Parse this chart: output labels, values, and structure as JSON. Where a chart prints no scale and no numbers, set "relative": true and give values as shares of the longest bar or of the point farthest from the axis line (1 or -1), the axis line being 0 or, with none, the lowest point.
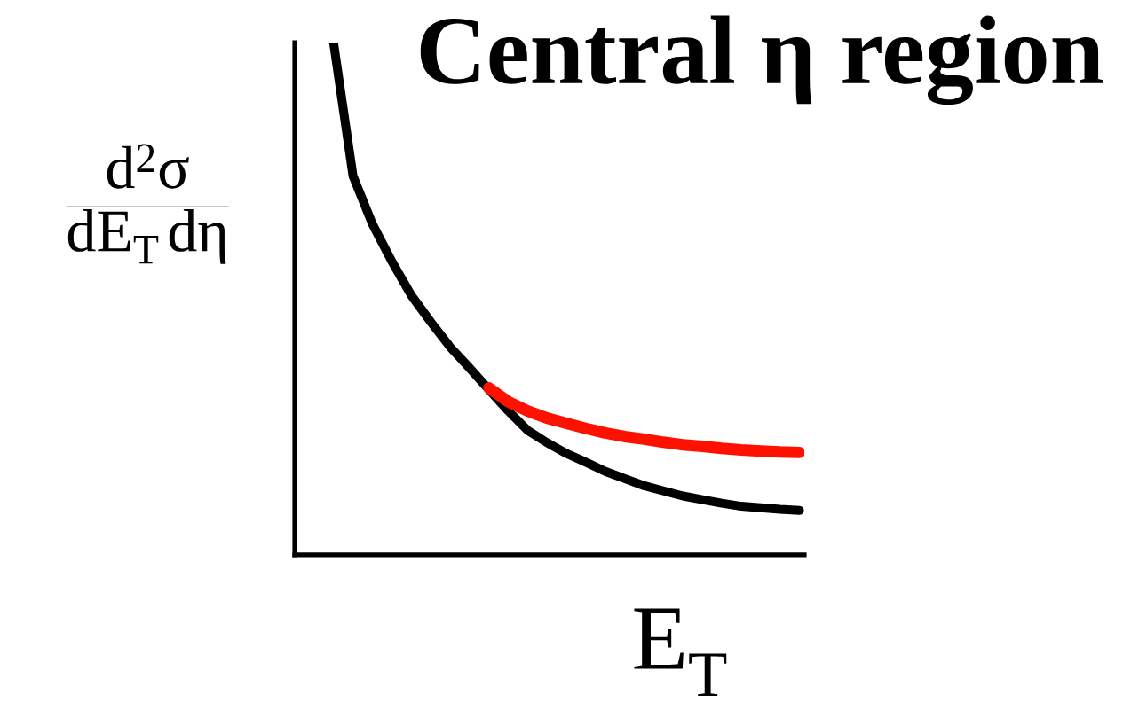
{
  "chart_data": {
    "type": "line",
    "title": "Central η region",
    "xlabel": "E$_{T}$",
    "ylabel": "\\frac{\\mathrm{d^{2}σ}}{\\mathrm{dE_{T}\\,dη}}",
    "relative": true,
    "marker": "none",
    "line_style": "solid",
    "categories": [
      null,
      null,
      null,
      null,
      null,
      null,
      null,
      null,
      null,
      null,
      null,
      null,
      null,
      null,
      null,
      null,
      null,
      null,
      null,
      null,
      null,
      null,
      null,
      null,
      null
    ],
    "series": [
      {
        "color": "#000000",
        "values": [
          1.0,
          0.74,
          0.646,
          0.573,
          0.507,
          0.455,
          0.406,
          0.365,
          0.323,
          0.281,
          0.243,
          0.219,
          0.198,
          0.181,
          0.163,
          0.149,
          0.135,
          0.125,
          0.115,
          0.108,
          0.101,
          0.095,
          0.092,
          0.089,
          0.087
        ]
      },
      {
        "color": "#ff1100",
        "values": [
          null,
          null,
          null,
          null,
          null,
          null,
          null,
          null,
          0.326,
          0.299,
          0.281,
          0.267,
          0.257,
          0.247,
          0.238,
          0.231,
          0.226,
          0.22,
          0.215,
          0.212,
          0.208,
          0.205,
          0.203,
          0.201,
          0.2
        ]
      }
    ]
  }
}
